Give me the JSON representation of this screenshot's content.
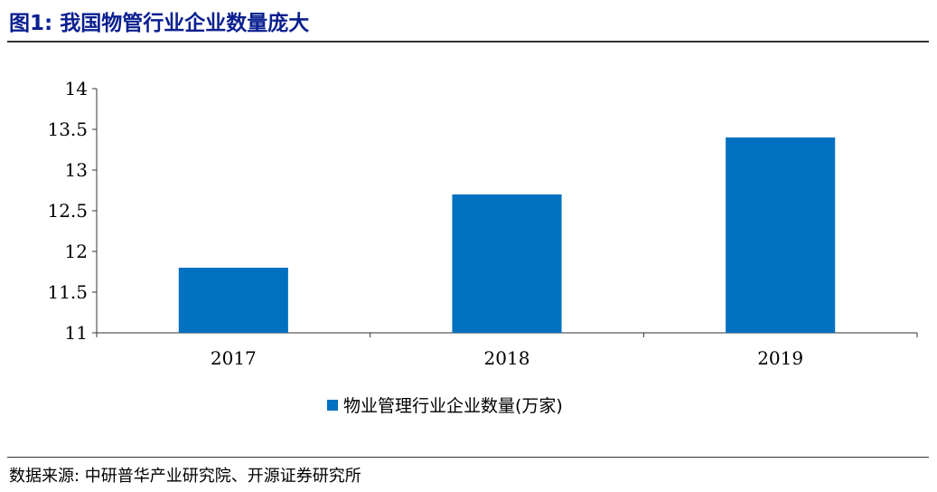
{
  "header": {
    "title": "图1:  我国物管行业企业数量庞大"
  },
  "footer": {
    "source": "数据来源:  中研普华产业研究院、开源证券研究所"
  },
  "colors": {
    "bar": "#0070c0",
    "title": "#0a1f8f"
  },
  "chart_data": {
    "type": "bar",
    "categories": [
      "2017",
      "2018",
      "2019"
    ],
    "series": [
      {
        "name": "物业管理行业企业数量(万家)",
        "values": [
          11.8,
          12.7,
          13.4
        ]
      }
    ],
    "ylim": [
      11,
      14
    ],
    "yticks": [
      "11",
      "11.5",
      "12",
      "12.5",
      "13",
      "13.5",
      "14"
    ],
    "legend_position": "bottom",
    "grid": false
  }
}
